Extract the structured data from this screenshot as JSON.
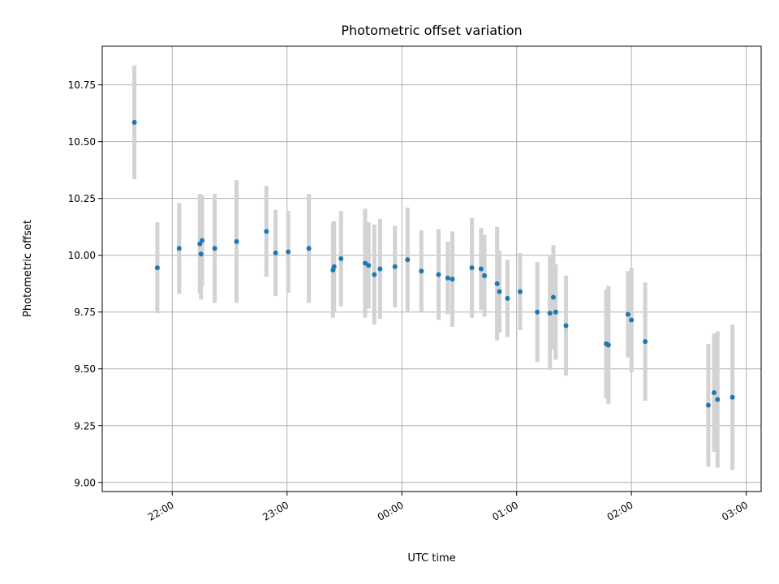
{
  "chart_data": {
    "type": "scatter",
    "title": "Photometric offset variation",
    "xlabel": "UTC time",
    "ylabel": "Photometric offset",
    "x_unit": "UTC clock time (hours after midnight, negative = previous day)",
    "xlim": [
      -2.61,
      3.13
    ],
    "ylim": [
      8.96,
      10.92
    ],
    "x_ticks": [
      {
        "value": -2,
        "label": "22:00"
      },
      {
        "value": -1,
        "label": "23:00"
      },
      {
        "value": 0,
        "label": "00:00"
      },
      {
        "value": 1,
        "label": "01:00"
      },
      {
        "value": 2,
        "label": "02:00"
      },
      {
        "value": 3,
        "label": "03:00"
      }
    ],
    "y_ticks": [
      {
        "value": 9.0,
        "label": "9.00"
      },
      {
        "value": 9.25,
        "label": "9.25"
      },
      {
        "value": 9.5,
        "label": "9.50"
      },
      {
        "value": 9.75,
        "label": "9.75"
      },
      {
        "value": 10.0,
        "label": "10.00"
      },
      {
        "value": 10.25,
        "label": "10.25"
      },
      {
        "value": 10.5,
        "label": "10.50"
      },
      {
        "value": 10.75,
        "label": "10.75"
      }
    ],
    "grid": true,
    "colors": {
      "marker": "#1f77b4",
      "errorbar": "#d3d3d3",
      "grid": "#b0b0b0"
    },
    "points": [
      {
        "x": -2.33,
        "y": 10.585,
        "err": 0.25
      },
      {
        "x": -2.13,
        "y": 9.945,
        "err": 0.2
      },
      {
        "x": -1.94,
        "y": 10.03,
        "err": 0.2
      },
      {
        "x": -1.76,
        "y": 10.05,
        "err": 0.22
      },
      {
        "x": -1.75,
        "y": 10.005,
        "err": 0.2
      },
      {
        "x": -1.74,
        "y": 10.065,
        "err": 0.2
      },
      {
        "x": -1.63,
        "y": 10.03,
        "err": 0.24
      },
      {
        "x": -1.44,
        "y": 10.06,
        "err": 0.27
      },
      {
        "x": -1.18,
        "y": 10.105,
        "err": 0.2
      },
      {
        "x": -1.1,
        "y": 10.01,
        "err": 0.19
      },
      {
        "x": -0.99,
        "y": 10.015,
        "err": 0.18
      },
      {
        "x": -0.81,
        "y": 10.03,
        "err": 0.24
      },
      {
        "x": -0.6,
        "y": 9.935,
        "err": 0.21
      },
      {
        "x": -0.59,
        "y": 9.95,
        "err": 0.2
      },
      {
        "x": -0.53,
        "y": 9.985,
        "err": 0.21
      },
      {
        "x": -0.32,
        "y": 9.965,
        "err": 0.24
      },
      {
        "x": -0.29,
        "y": 9.955,
        "err": 0.19
      },
      {
        "x": -0.24,
        "y": 9.915,
        "err": 0.22
      },
      {
        "x": -0.19,
        "y": 9.94,
        "err": 0.22
      },
      {
        "x": -0.06,
        "y": 9.95,
        "err": 0.18
      },
      {
        "x": 0.05,
        "y": 9.98,
        "err": 0.23
      },
      {
        "x": 0.17,
        "y": 9.93,
        "err": 0.18
      },
      {
        "x": 0.32,
        "y": 9.915,
        "err": 0.2
      },
      {
        "x": 0.4,
        "y": 9.9,
        "err": 0.16
      },
      {
        "x": 0.44,
        "y": 9.895,
        "err": 0.21
      },
      {
        "x": 0.61,
        "y": 9.945,
        "err": 0.22
      },
      {
        "x": 0.69,
        "y": 9.94,
        "err": 0.18
      },
      {
        "x": 0.72,
        "y": 9.91,
        "err": 0.18
      },
      {
        "x": 0.83,
        "y": 9.875,
        "err": 0.25
      },
      {
        "x": 0.85,
        "y": 9.84,
        "err": 0.18
      },
      {
        "x": 0.92,
        "y": 9.81,
        "err": 0.17
      },
      {
        "x": 1.03,
        "y": 9.84,
        "err": 0.17
      },
      {
        "x": 1.18,
        "y": 9.75,
        "err": 0.22
      },
      {
        "x": 1.29,
        "y": 9.745,
        "err": 0.25
      },
      {
        "x": 1.32,
        "y": 9.815,
        "err": 0.23
      },
      {
        "x": 1.34,
        "y": 9.75,
        "err": 0.21
      },
      {
        "x": 1.43,
        "y": 9.69,
        "err": 0.22
      },
      {
        "x": 1.78,
        "y": 9.61,
        "err": 0.24
      },
      {
        "x": 1.8,
        "y": 9.605,
        "err": 0.26
      },
      {
        "x": 1.97,
        "y": 9.74,
        "err": 0.19
      },
      {
        "x": 2.0,
        "y": 9.715,
        "err": 0.23
      },
      {
        "x": 2.12,
        "y": 9.62,
        "err": 0.26
      },
      {
        "x": 2.67,
        "y": 9.34,
        "err": 0.27
      },
      {
        "x": 2.72,
        "y": 9.395,
        "err": 0.26
      },
      {
        "x": 2.75,
        "y": 9.365,
        "err": 0.3
      },
      {
        "x": 2.88,
        "y": 9.375,
        "err": 0.32
      }
    ]
  }
}
